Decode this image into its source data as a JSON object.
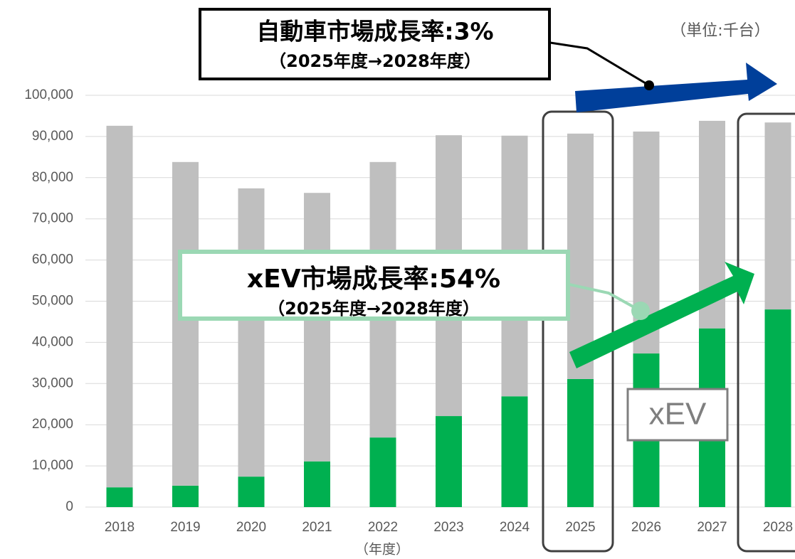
{
  "chart_data": {
    "type": "stacked_bar",
    "categories": [
      "2018",
      "2019",
      "2020",
      "2021",
      "2022",
      "2023",
      "2024",
      "2025",
      "2026",
      "2027",
      "2028"
    ],
    "series": [
      {
        "name": "xEV",
        "color": "#00b050",
        "values": [
          4800,
          5200,
          7400,
          11100,
          16900,
          22100,
          26900,
          31100,
          37300,
          43400,
          48000
        ]
      },
      {
        "color": "#bfbfbf",
        "values": [
          87800,
          78600,
          70000,
          65200,
          66900,
          68200,
          63300,
          59600,
          53900,
          50400,
          45400
        ]
      }
    ],
    "ylim": [
      0,
      100000
    ],
    "yticks": [
      0,
      {
        "value": 10000,
        "label": "10,000"
      },
      {
        "value": 20000,
        "label": "20,000"
      },
      {
        "value": 30000,
        "label": "30,000"
      },
      {
        "value": 40000,
        "label": "40,000"
      },
      {
        "value": 50000,
        "label": "50,000"
      },
      {
        "value": 60000,
        "label": "60,000"
      },
      {
        "value": 70000,
        "label": "70,000"
      },
      {
        "value": 80000,
        "label": "80,000"
      },
      {
        "value": 90000,
        "label": "90,000"
      },
      {
        "value": 100000,
        "label": "100,000"
      }
    ],
    "grid": true,
    "unit_label": "（単位:千台）",
    "x_label": "（年度）",
    "annotations": [
      {
        "text": "自動車市場成長率:3%",
        "subtext": "（2025年度→2028年度）"
      },
      {
        "text": "xEV市場成長率:54%",
        "subtext": "（2025年度→2028年度）"
      }
    ]
  }
}
